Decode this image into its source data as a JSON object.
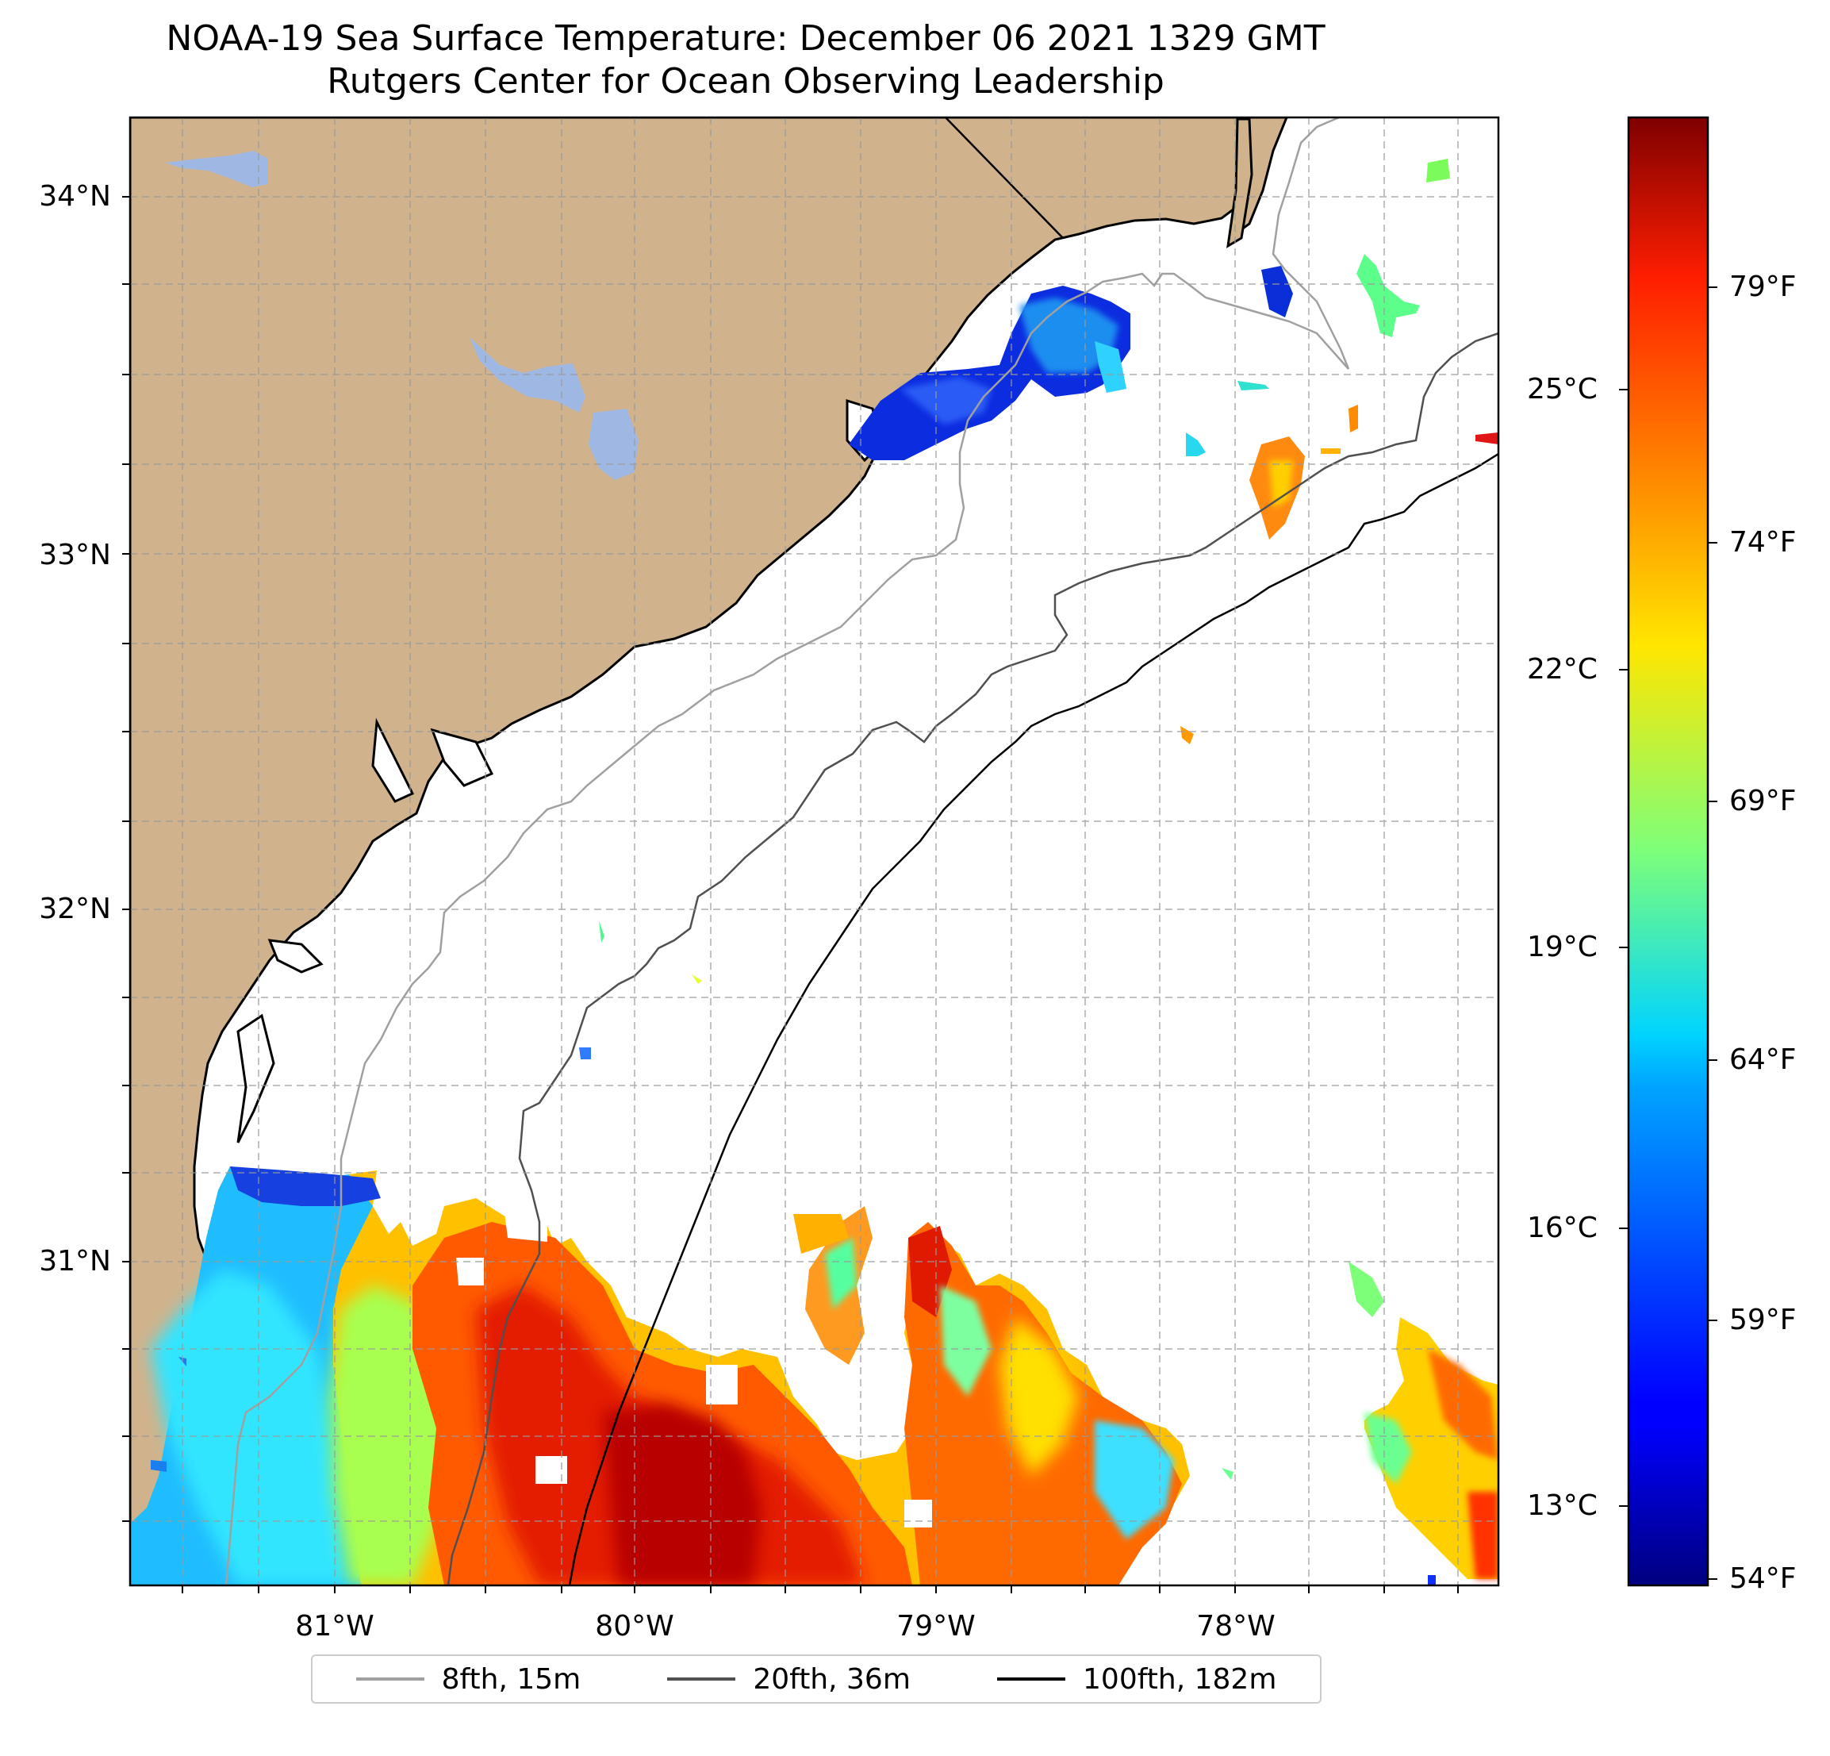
{
  "title": "NOAA-19 Sea Surface Temperature: December 06 2021 1329 GMT",
  "subtitle": "Rutgers Center for Ocean Observing Leadership",
  "map": {
    "lat_ticks": [
      "34°N",
      "33°N",
      "32°N",
      "31°N"
    ],
    "lon_ticks": [
      "81°W",
      "80°W",
      "79°W",
      "78°W"
    ],
    "land_color": "#d0b38c",
    "lake_color": "#9fb8e3",
    "ocean_color": "#ffffff"
  },
  "colorbar": {
    "celsius_labels": [
      "25°C",
      "22°C",
      "19°C",
      "16°C",
      "13°C"
    ],
    "fahrenheit_labels": [
      "79°F",
      "74°F",
      "69°F",
      "64°F",
      "59°F",
      "54°F"
    ],
    "colormap": "jet"
  },
  "legend": {
    "items": [
      {
        "label": "8fth, 15m",
        "color": "#a0a0a0"
      },
      {
        "label": "20fth, 36m",
        "color": "#505050"
      },
      {
        "label": "100fth, 182m",
        "color": "#000000"
      }
    ]
  }
}
